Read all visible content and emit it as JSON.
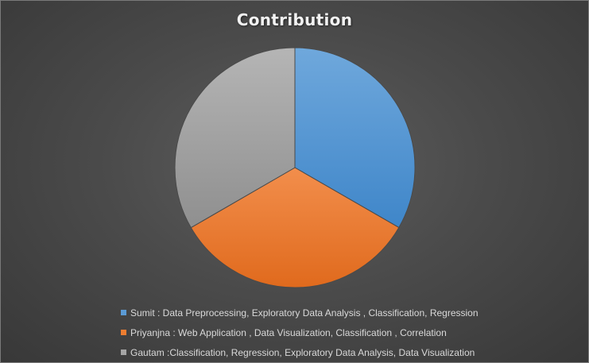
{
  "chart_data": {
    "type": "pie",
    "title": "Contribution",
    "categories": [
      "Sumit : Data Preprocessing, Exploratory Data Analysis , Classification, Regression",
      "Priyanjna : Web Application , Data  Visualization, Classification , Correlation",
      "Gautam :Classification, Regression, Exploratory Data Analysis, Data Visualization"
    ],
    "values": [
      33.33,
      33.33,
      33.34
    ],
    "colors": [
      "#5b9bd5",
      "#ed7d31",
      "#a5a5a5"
    ],
    "legend_position": "bottom"
  }
}
